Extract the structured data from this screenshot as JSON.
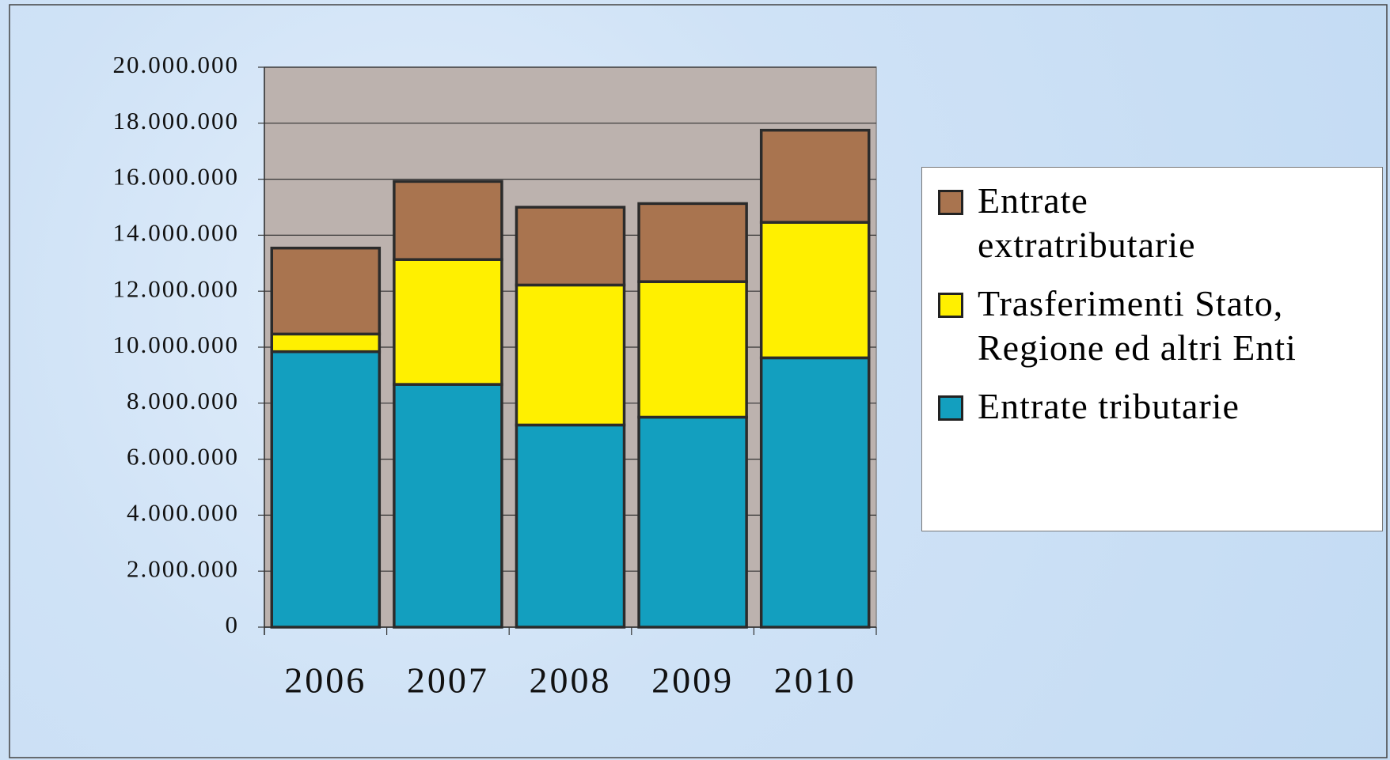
{
  "chart_data": {
    "type": "stacked_bar",
    "categories": [
      "2006",
      "2007",
      "2008",
      "2009",
      "2010"
    ],
    "series": [
      {
        "name": "Entrate tributarie",
        "color": "#139fbf",
        "values": [
          9840000,
          8670000,
          7220000,
          7500000,
          9620000
        ]
      },
      {
        "name": "Trasferimenti Stato, Regione ed altri Enti",
        "color": "#fff000",
        "values": [
          630000,
          4460000,
          5000000,
          4840000,
          4840000
        ]
      },
      {
        "name": "Entrate extratributarie",
        "color": "#a9744f",
        "values": [
          3070000,
          2790000,
          2780000,
          2790000,
          3290000
        ]
      }
    ],
    "ylim": [
      0,
      20000000
    ],
    "yticks": [
      0,
      {
        "value": 2000000,
        "label": "2.000.000"
      },
      {
        "value": 4000000,
        "label": "4.000.000"
      },
      {
        "value": 6000000,
        "label": "6.000.000"
      },
      {
        "value": 8000000,
        "label": "8.000.000"
      },
      {
        "value": 10000000,
        "label": "10.000.000"
      },
      {
        "value": 12000000,
        "label": "12.000.000"
      },
      {
        "value": 14000000,
        "label": "14.000.000"
      },
      {
        "value": 16000000,
        "label": "16.000.000"
      },
      {
        "value": 18000000,
        "label": "18.000.000"
      },
      {
        "value": 20000000,
        "label": "20.000.000"
      }
    ],
    "grid": true,
    "legend": "right"
  }
}
